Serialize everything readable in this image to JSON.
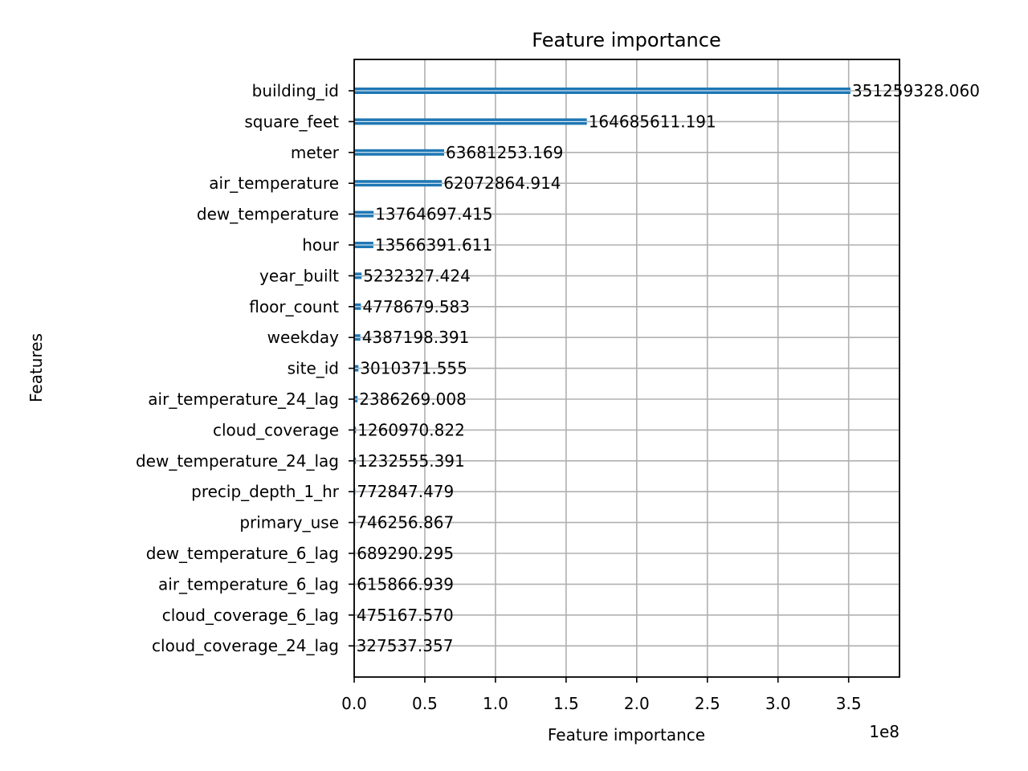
{
  "chart_data": {
    "type": "bar",
    "orientation": "horizontal",
    "title": "Feature importance",
    "xlabel": "Feature importance",
    "ylabel": "Features",
    "x_offset_label": "1e8",
    "x_scale": 100000000,
    "xlim": [
      0,
      386000000
    ],
    "grid": true,
    "x_ticks": [
      0,
      50000000,
      100000000,
      150000000,
      200000000,
      250000000,
      300000000,
      350000000
    ],
    "x_tick_labels": [
      "0.0",
      "0.5",
      "1.0",
      "1.5",
      "2.0",
      "2.5",
      "3.0",
      "3.5"
    ],
    "categories": [
      "building_id",
      "square_feet",
      "meter",
      "air_temperature",
      "dew_temperature",
      "hour",
      "year_built",
      "floor_count",
      "weekday",
      "site_id",
      "air_temperature_24_lag",
      "cloud_coverage",
      "dew_temperature_24_lag",
      "precip_depth_1_hr",
      "primary_use",
      "dew_temperature_6_lag",
      "air_temperature_6_lag",
      "cloud_coverage_6_lag",
      "cloud_coverage_24_lag"
    ],
    "values": [
      351259328.06,
      164685611.191,
      63681253.169,
      62072864.914,
      13764697.415,
      13566391.611,
      5232327.424,
      4778679.583,
      4387198.391,
      3010371.555,
      2386269.008,
      1260970.822,
      1232555.391,
      772847.479,
      746256.867,
      689290.295,
      615866.939,
      475167.57,
      327537.357
    ],
    "value_labels": [
      "351259328.060",
      "164685611.191",
      "63681253.169",
      "62072864.914",
      "13764697.415",
      "13566391.611",
      "5232327.424",
      "4778679.583",
      "4387198.391",
      "3010371.555",
      "2386269.008",
      "1260970.822",
      "1232555.391",
      "772847.479",
      "746256.867",
      "689290.295",
      "615866.939",
      "475167.570",
      "327537.357"
    ],
    "bar_color": "#1f77b4",
    "grid_color": "#b0b0b0"
  }
}
